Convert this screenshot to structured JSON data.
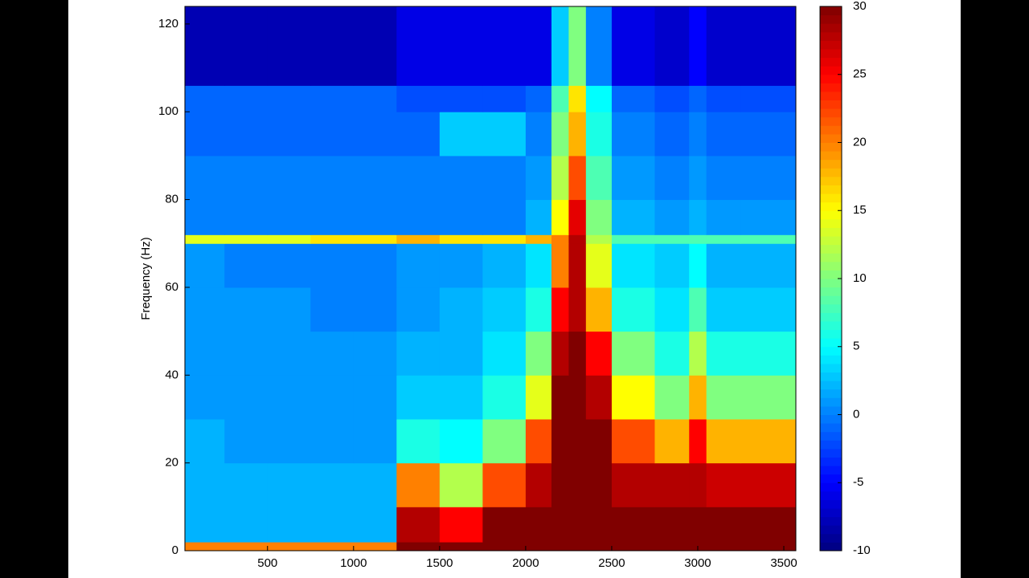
{
  "chart_data": {
    "type": "heatmap",
    "colormap": "jet",
    "ylabel": "Frequency (Hz)",
    "x_bins": [
      20,
      250,
      500,
      750,
      1000,
      1250,
      1500,
      1750,
      2000,
      2150,
      2250,
      2350,
      2500,
      2750,
      2950,
      3050,
      3250,
      3570
    ],
    "y_bins": [
      0,
      2,
      10,
      20,
      30,
      40,
      50,
      60,
      70,
      72,
      80,
      90,
      100,
      106,
      124
    ],
    "values": [
      [
        20,
        20,
        20,
        20,
        20,
        30,
        30,
        30,
        30,
        30,
        30,
        30,
        30,
        30,
        30,
        30,
        30
      ],
      [
        2,
        2,
        2,
        2,
        2,
        28,
        25,
        30,
        30,
        30,
        30,
        30,
        30,
        30,
        30,
        30,
        30
      ],
      [
        2,
        2,
        2,
        2,
        2,
        20,
        12,
        22,
        28,
        30,
        30,
        30,
        28,
        28,
        28,
        27,
        27
      ],
      [
        2,
        1,
        1,
        1,
        1,
        6,
        5,
        10,
        22,
        30,
        30,
        30,
        22,
        18,
        25,
        18,
        18
      ],
      [
        1,
        1,
        1,
        1,
        1,
        3,
        3,
        6,
        14,
        30,
        30,
        28,
        15,
        10,
        18,
        10,
        10
      ],
      [
        1,
        1,
        1,
        1,
        1,
        2,
        2,
        4,
        10,
        28,
        30,
        25,
        10,
        6,
        12,
        6,
        6
      ],
      [
        1,
        1,
        1,
        0,
        0,
        1,
        2,
        3,
        6,
        25,
        28,
        18,
        6,
        4,
        8,
        3,
        3
      ],
      [
        1,
        0,
        0,
        0,
        0,
        1,
        1,
        2,
        4,
        20,
        28,
        14,
        4,
        3,
        5,
        2,
        2
      ],
      [
        14,
        14,
        14,
        16,
        16,
        18,
        16,
        16,
        18,
        20,
        28,
        12,
        8,
        8,
        8,
        8,
        8
      ],
      [
        0,
        0,
        0,
        0,
        0,
        0,
        0,
        0,
        2,
        15,
        26,
        10,
        2,
        1,
        2,
        1,
        1
      ],
      [
        0,
        0,
        0,
        0,
        0,
        0,
        0,
        0,
        1,
        12,
        22,
        8,
        1,
        0,
        1,
        0,
        0
      ],
      [
        -1,
        -1,
        -1,
        -1,
        -1,
        -1,
        3,
        3,
        0,
        10,
        18,
        6,
        0,
        -1,
        0,
        -1,
        -1
      ],
      [
        -1,
        -1,
        -1,
        -1,
        -1,
        -2,
        -2,
        -2,
        -1,
        8,
        16,
        5,
        -1,
        -2,
        -1,
        -2,
        -2
      ],
      [
        -8,
        -8,
        -8,
        -8,
        -8,
        -6,
        -6,
        -6,
        -6,
        3,
        10,
        0,
        -6,
        -7,
        -5,
        -7,
        -7
      ]
    ],
    "xlim": [
      20,
      3570
    ],
    "xticks": [
      500,
      1000,
      1500,
      2000,
      2500,
      3000,
      3500
    ],
    "ylim": [
      0,
      124
    ],
    "yticks": [
      0,
      20,
      40,
      60,
      80,
      100,
      120
    ],
    "clim": [
      -10,
      30
    ],
    "cticks": [
      -10,
      -5,
      0,
      5,
      10,
      15,
      20,
      25,
      30
    ]
  }
}
